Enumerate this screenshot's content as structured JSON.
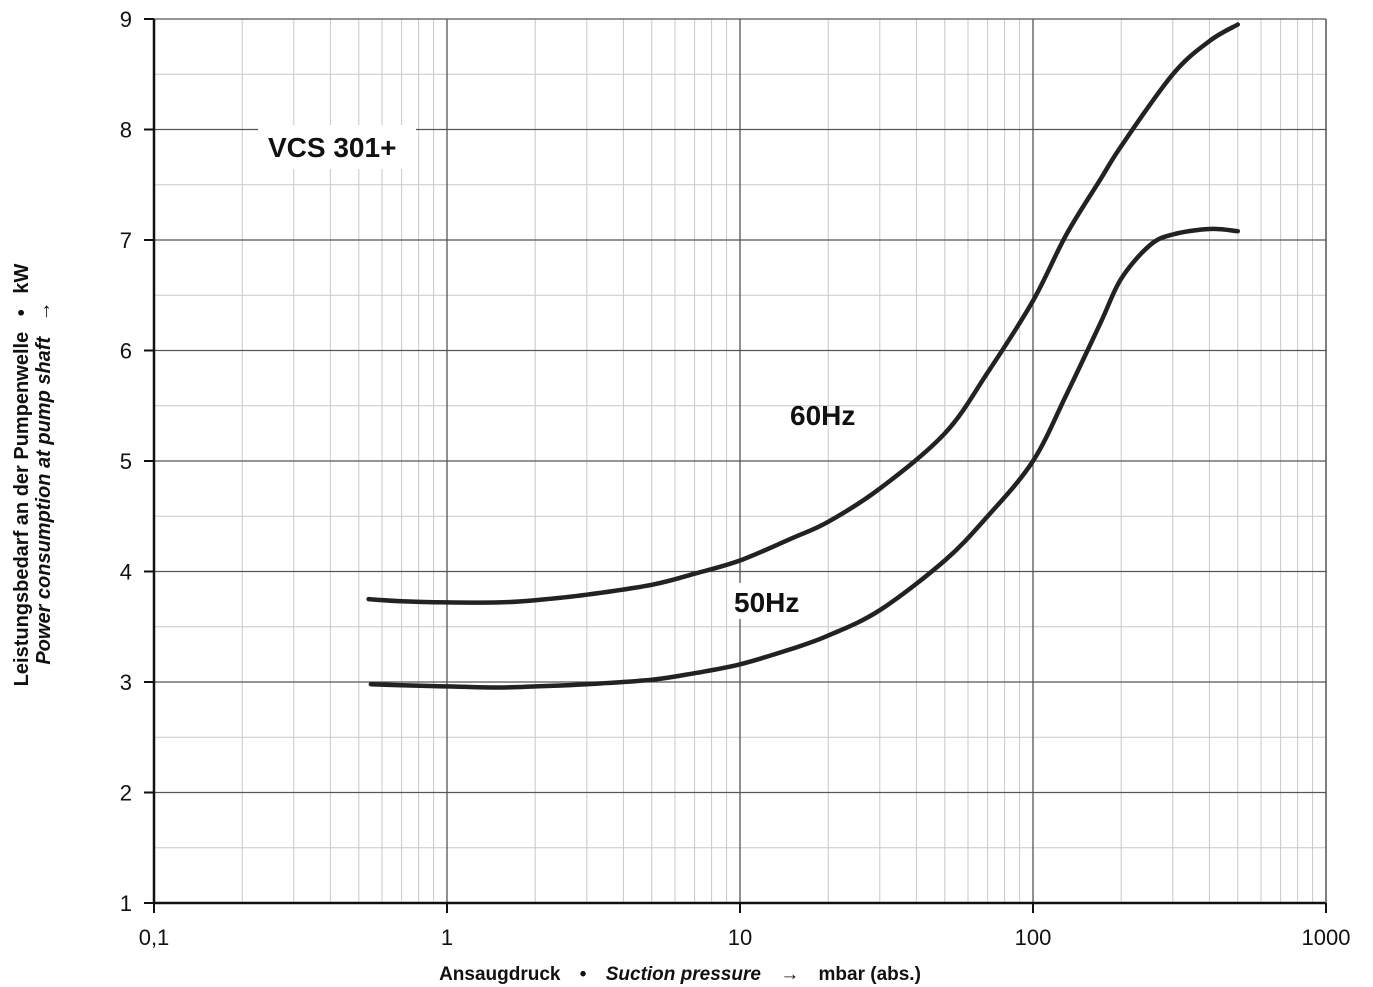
{
  "chart_data": {
    "type": "line",
    "title": "VCS 301+",
    "x_scale": "log",
    "xlim": [
      0.1,
      1000
    ],
    "ylim": [
      1,
      9
    ],
    "grid": true,
    "xlabel": {
      "part1": "Ansaugdruck",
      "sep1": "•",
      "part2": "Suction pressure",
      "arrow": "→",
      "unit": "mbar (abs.)"
    },
    "ylabel": {
      "line1": "Leistungsbedarf an der Pumpenwelle",
      "sep1": "•",
      "line2": "Power consumption at pump shaft",
      "arrow": "→",
      "unit": "kW"
    },
    "x_ticks": [
      {
        "value": 0.1,
        "label": "0,1"
      },
      {
        "value": 1,
        "label": "1"
      },
      {
        "value": 10,
        "label": "10"
      },
      {
        "value": 100,
        "label": "100"
      },
      {
        "value": 1000,
        "label": "1000"
      }
    ],
    "y_ticks": [
      {
        "value": 1,
        "label": "1"
      },
      {
        "value": 2,
        "label": "2"
      },
      {
        "value": 3,
        "label": "3"
      },
      {
        "value": 4,
        "label": "4"
      },
      {
        "value": 5,
        "label": "5"
      },
      {
        "value": 6,
        "label": "6"
      },
      {
        "value": 7,
        "label": "7"
      },
      {
        "value": 8,
        "label": "8"
      },
      {
        "value": 9,
        "label": "9"
      }
    ],
    "series": [
      {
        "name": "60Hz",
        "color": "#222222",
        "x": [
          0.54,
          0.7,
          1,
          1.5,
          2,
          3,
          5,
          7,
          10,
          15,
          20,
          30,
          50,
          70,
          100,
          130,
          170,
          200,
          300,
          400,
          500
        ],
        "y": [
          3.75,
          3.73,
          3.72,
          3.72,
          3.74,
          3.79,
          3.88,
          3.98,
          4.1,
          4.3,
          4.45,
          4.75,
          5.25,
          5.8,
          6.45,
          7.05,
          7.55,
          7.85,
          8.5,
          8.8,
          8.95
        ]
      },
      {
        "name": "50Hz",
        "color": "#222222",
        "x": [
          0.55,
          0.7,
          1,
          1.5,
          2,
          3,
          5,
          7,
          10,
          15,
          20,
          30,
          50,
          70,
          100,
          130,
          170,
          200,
          250,
          300,
          400,
          500
        ],
        "y": [
          2.98,
          2.97,
          2.96,
          2.95,
          2.96,
          2.98,
          3.02,
          3.08,
          3.16,
          3.3,
          3.42,
          3.65,
          4.1,
          4.5,
          5.0,
          5.6,
          6.25,
          6.65,
          6.95,
          7.05,
          7.1,
          7.08
        ]
      }
    ],
    "annotations": [
      "VCS 301+",
      "60Hz",
      "50Hz"
    ]
  }
}
